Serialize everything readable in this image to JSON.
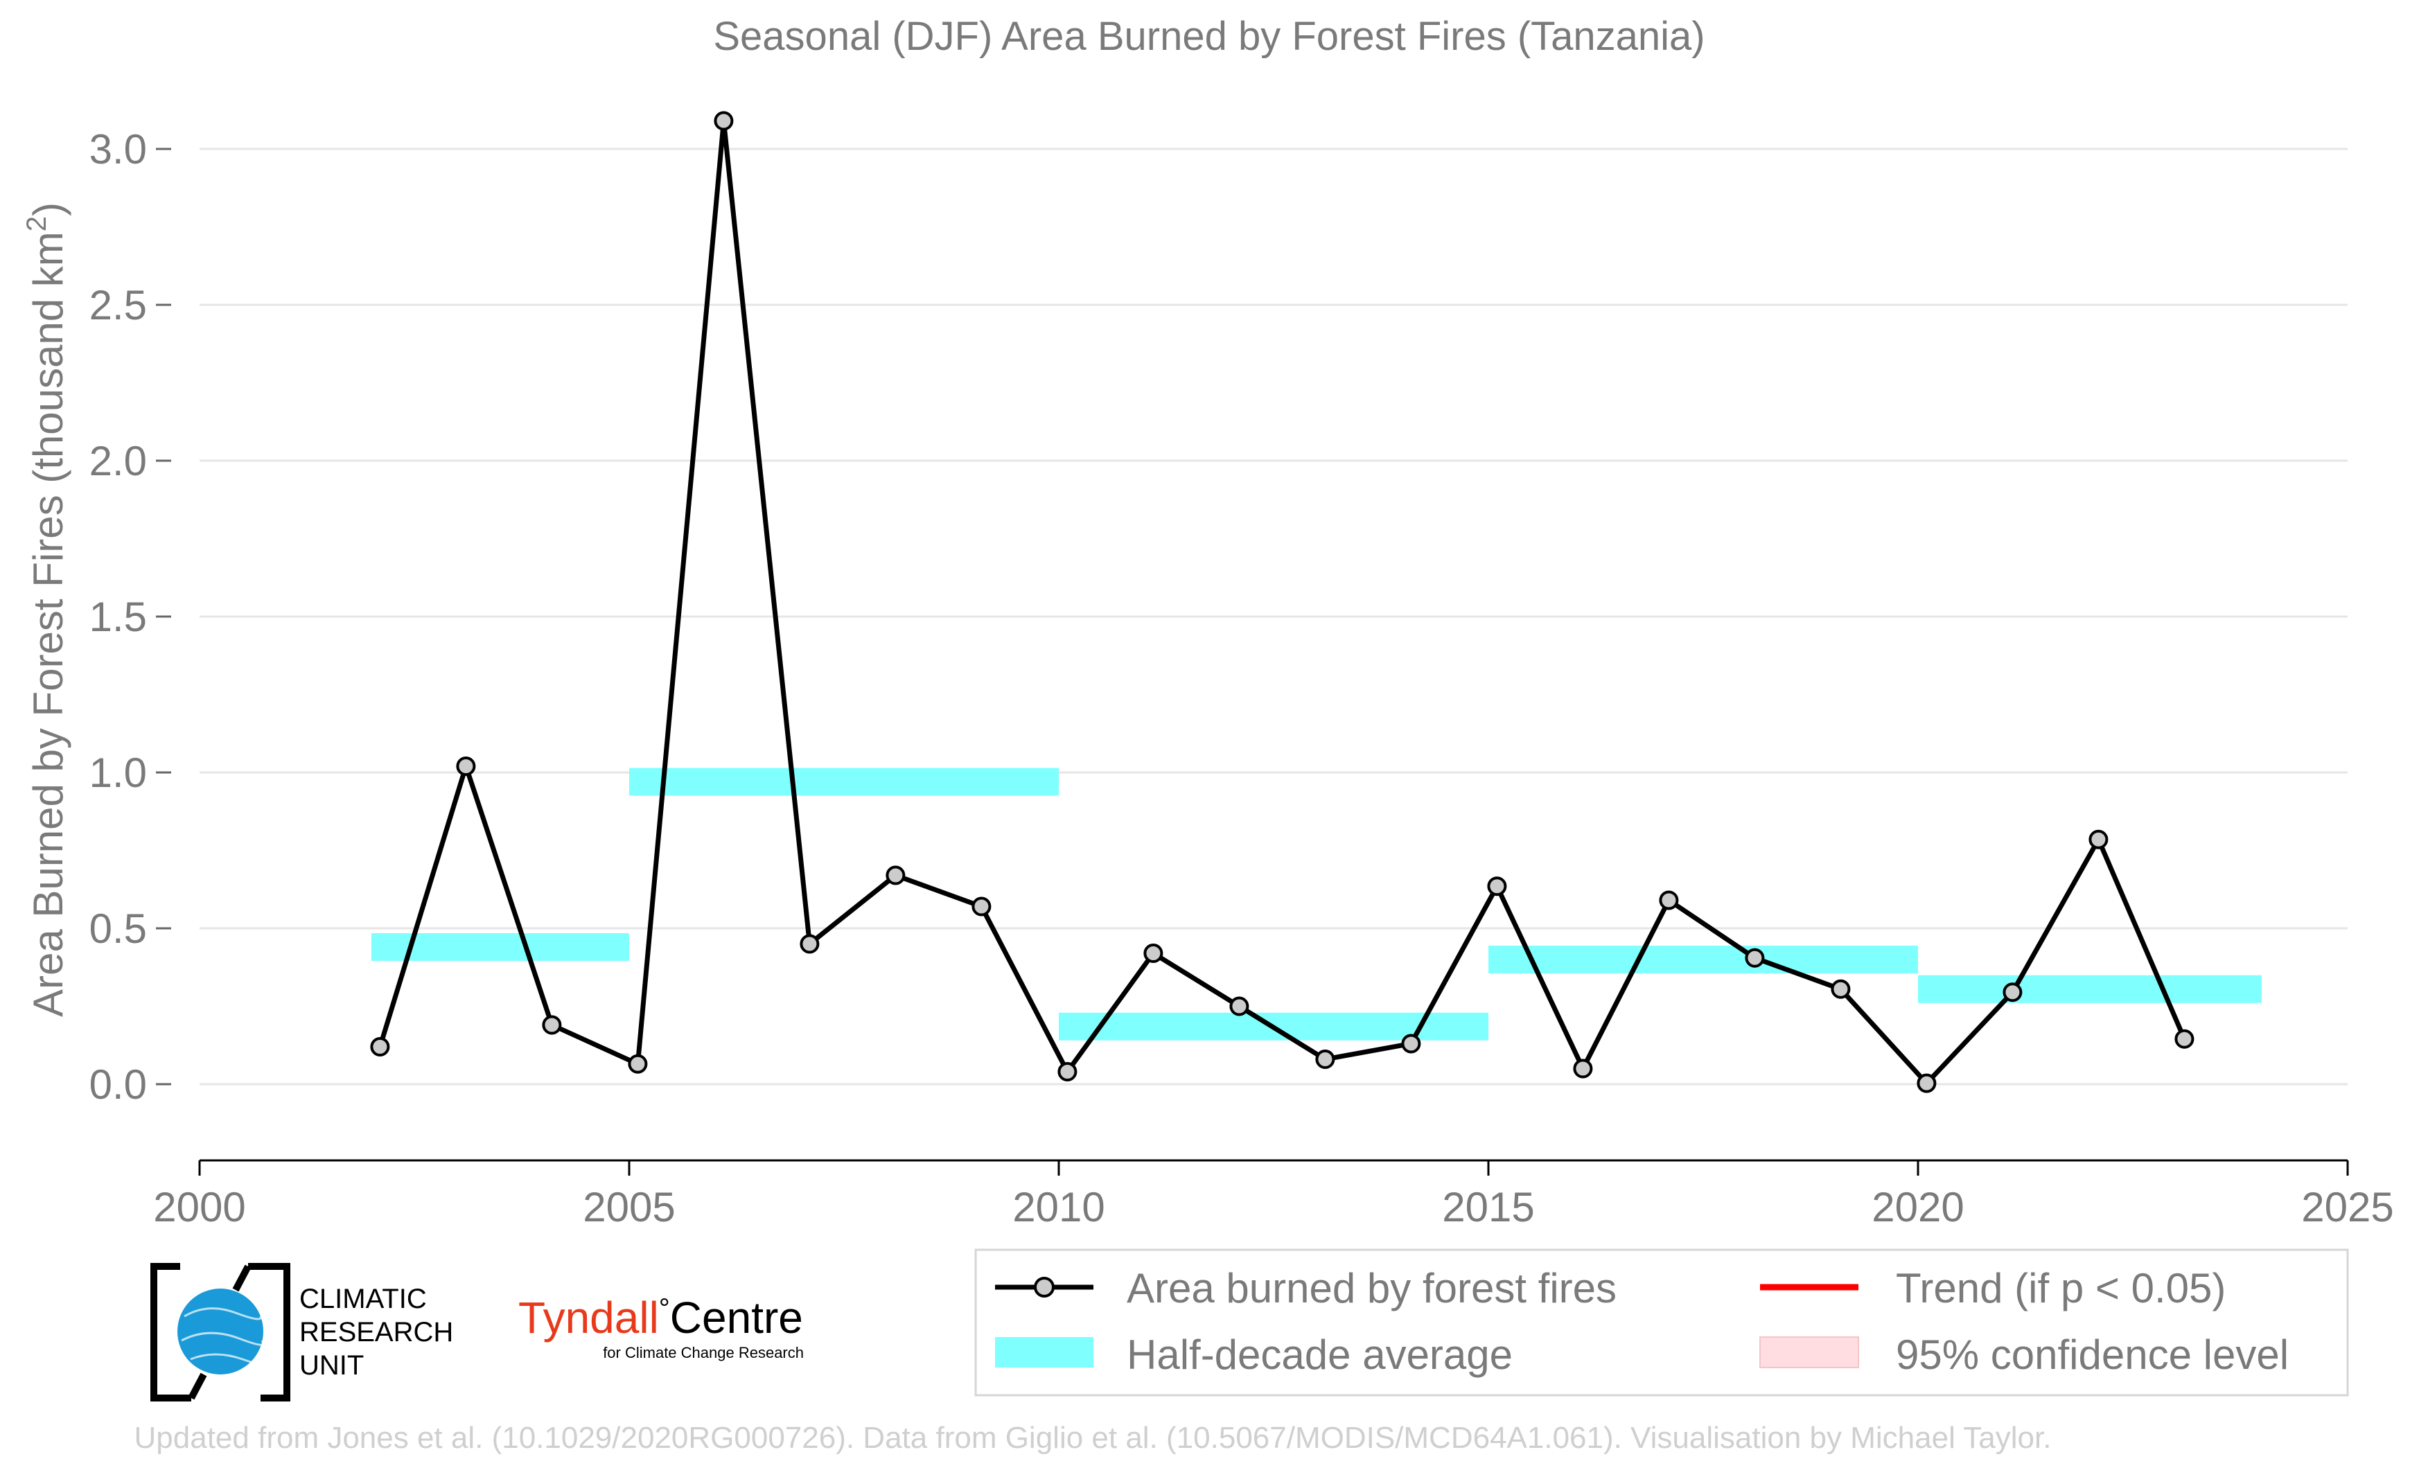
{
  "colors": {
    "series_line": "#000000",
    "marker_fill": "#cccccc",
    "half_decade": "#80ffff",
    "trend": "#ff0000",
    "confidence": "#ffdde0",
    "grid": "#e6e6e6",
    "text": "#7a7a7a",
    "credit": "#cfcfcf",
    "tyndall_red": "#e8391a",
    "globe_blue": "#1a9ad8"
  },
  "logos": {
    "cru": {
      "line1": "CLIMATIC",
      "line2": "RESEARCH",
      "line3": "UNIT"
    },
    "tyndall": {
      "main_left": "Tyndall",
      "degree": "°",
      "main_right": "Centre",
      "sub": "for Climate Change Research"
    }
  },
  "credit": "Updated from Jones et al. (10.1029/2020RG000726). Data from Giglio et al. (10.5067/MODIS/MCD64A1.061). Visualisation by Michael Taylor.",
  "chart_data": {
    "type": "line",
    "title": "Seasonal (DJF) Area Burned by Forest Fires (Tanzania)",
    "xlabel": "",
    "ylabel_main": "Area Burned by Forest Fires (thousand km",
    "ylabel_sup": "2",
    "ylabel_close": ")",
    "xlim": [
      2000,
      2025
    ],
    "ylim": [
      -0.25,
      3.15
    ],
    "xticks": [
      2000,
      2005,
      2010,
      2015,
      2020,
      2025
    ],
    "yticks": [
      0.0,
      0.5,
      1.0,
      1.5,
      2.0,
      2.5,
      3.0
    ],
    "ytick_labels": [
      "0.0",
      "0.5",
      "1.0",
      "1.5",
      "2.0",
      "2.5",
      "3.0"
    ],
    "grid": "horizontal",
    "legend_position": "bottom-right",
    "series": [
      {
        "name": "Area burned by forest fires",
        "x": [
          2002.1,
          2003.1,
          2004.1,
          2005.1,
          2006.1,
          2007.1,
          2008.1,
          2009.1,
          2010.1,
          2011.1,
          2012.1,
          2013.1,
          2014.1,
          2015.1,
          2016.1,
          2017.1,
          2018.1,
          2019.1,
          2020.1,
          2021.1,
          2022.1,
          2023.1
        ],
        "values": [
          0.12,
          1.02,
          0.19,
          0.065,
          3.09,
          0.45,
          0.67,
          0.57,
          0.04,
          0.42,
          0.25,
          0.08,
          0.13,
          0.635,
          0.05,
          0.59,
          0.405,
          0.305,
          0.003,
          0.295,
          0.785,
          0.145
        ]
      }
    ],
    "half_decade_averages": {
      "name": "Half-decade average",
      "segments": [
        {
          "x_start": 2002,
          "x_end": 2005,
          "value": 0.44
        },
        {
          "x_start": 2005,
          "x_end": 2010,
          "value": 0.97
        },
        {
          "x_start": 2010,
          "x_end": 2015,
          "value": 0.185
        },
        {
          "x_start": 2015,
          "x_end": 2020,
          "value": 0.4
        },
        {
          "x_start": 2020,
          "x_end": 2024,
          "value": 0.305
        }
      ]
    },
    "legend": [
      {
        "key": "series",
        "label": "Area burned by forest fires"
      },
      {
        "key": "trend",
        "label": "Trend (if p < 0.05)"
      },
      {
        "key": "half_decade",
        "label": "Half-decade average"
      },
      {
        "key": "confidence",
        "label": "95% confidence level"
      }
    ]
  }
}
